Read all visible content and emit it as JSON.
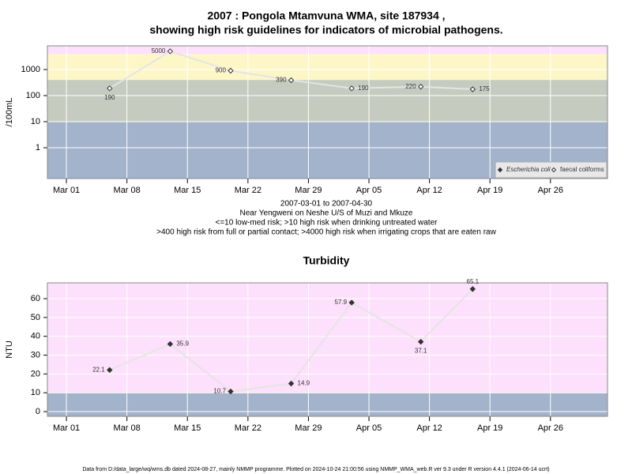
{
  "chart_data": [
    {
      "type": "line",
      "title": [
        "2007 : Pongola Mtamvuna WMA, site 187934 ,",
        "showing high risk guidelines for indicators of microbial pathogens."
      ],
      "y_label": "/100mL",
      "notes": [
        "2007-03-01 to 2007-04-30",
        "Near Yengweni on Neshe U/S of Muzi and Mkuze",
        "<=10 low-med risk; >10 high risk when drinking untreated water",
        ">400 high risk from full or partial contact; >4000 high risk when irrigating crops that are eaten raw"
      ],
      "log_y": true,
      "grid": true,
      "legend": "bottom-right",
      "x": [
        65,
        72,
        79,
        86,
        93,
        101,
        107
      ],
      "xlim": [
        57.8,
        122.6
      ],
      "xticks": [
        {
          "value": 60,
          "label": "Mar 01"
        },
        {
          "value": 67,
          "label": "Mar 08"
        },
        {
          "value": 74,
          "label": "Mar 15"
        },
        {
          "value": 81,
          "label": "Mar 22"
        },
        {
          "value": 88,
          "label": "Mar 29"
        },
        {
          "value": 95,
          "label": "Apr 05"
        },
        {
          "value": 102,
          "label": "Apr 12"
        },
        {
          "value": 109,
          "label": "Apr 19"
        },
        {
          "value": 116,
          "label": "Apr 26"
        }
      ],
      "ylim": [
        0.066,
        8100
      ],
      "yticks": [
        1,
        10,
        100,
        1000
      ],
      "bands": [
        {
          "to": 10,
          "color": "#a3b3cc"
        },
        {
          "from": 10,
          "to": 400,
          "color": "#c5ccbf"
        },
        {
          "from": 400,
          "to": 4000,
          "color": "#fdf7c8"
        },
        {
          "from": 4000,
          "color": "#fde0fb"
        }
      ],
      "series": [
        {
          "name": "Escherichia coli",
          "color": "#333333",
          "marker": "filled",
          "values": [
            null,
            null,
            null,
            null,
            null,
            null,
            null
          ]
        },
        {
          "name": "faecal coliforms",
          "color": "#333333",
          "marker": "open",
          "values": [
            190,
            5000,
            900,
            390,
            190,
            220,
            175
          ]
        }
      ]
    },
    {
      "type": "line",
      "title": [
        "Turbidity"
      ],
      "y_label": "NTU",
      "log_y": false,
      "grid": true,
      "x": [
        65,
        72,
        79,
        86,
        93,
        101,
        107
      ],
      "xlim": [
        57.8,
        122.6
      ],
      "xticks": [
        {
          "value": 60,
          "label": "Mar 01"
        },
        {
          "value": 67,
          "label": "Mar 08"
        },
        {
          "value": 74,
          "label": "Mar 15"
        },
        {
          "value": 81,
          "label": "Mar 22"
        },
        {
          "value": 88,
          "label": "Mar 29"
        },
        {
          "value": 95,
          "label": "Apr 05"
        },
        {
          "value": 102,
          "label": "Apr 12"
        },
        {
          "value": 109,
          "label": "Apr 19"
        },
        {
          "value": 116,
          "label": "Apr 26"
        }
      ],
      "ylim": [
        -2.5,
        68.4
      ],
      "yticks": [
        0,
        10,
        20,
        30,
        40,
        50,
        60
      ],
      "bands": [
        {
          "to": 10,
          "color": "#a3b3cc"
        },
        {
          "from": 10,
          "color": "#fde0fb"
        }
      ],
      "series": [
        {
          "name": "Turbidity",
          "color": "#333333",
          "marker": "filled",
          "values": [
            22.1,
            35.9,
            10.7,
            14.9,
            57.9,
            37.1,
            65.1
          ]
        }
      ]
    }
  ],
  "footer": "Data from D:/data_large/wq/wms.db dated 2024-08-27, mainly NMMP programme. Plotted on 2024-10-24 21:00:56 using NMMP_WMA_web.R ver 9.3 under R version 4.4.1 (2024-06-14 ucrt)"
}
